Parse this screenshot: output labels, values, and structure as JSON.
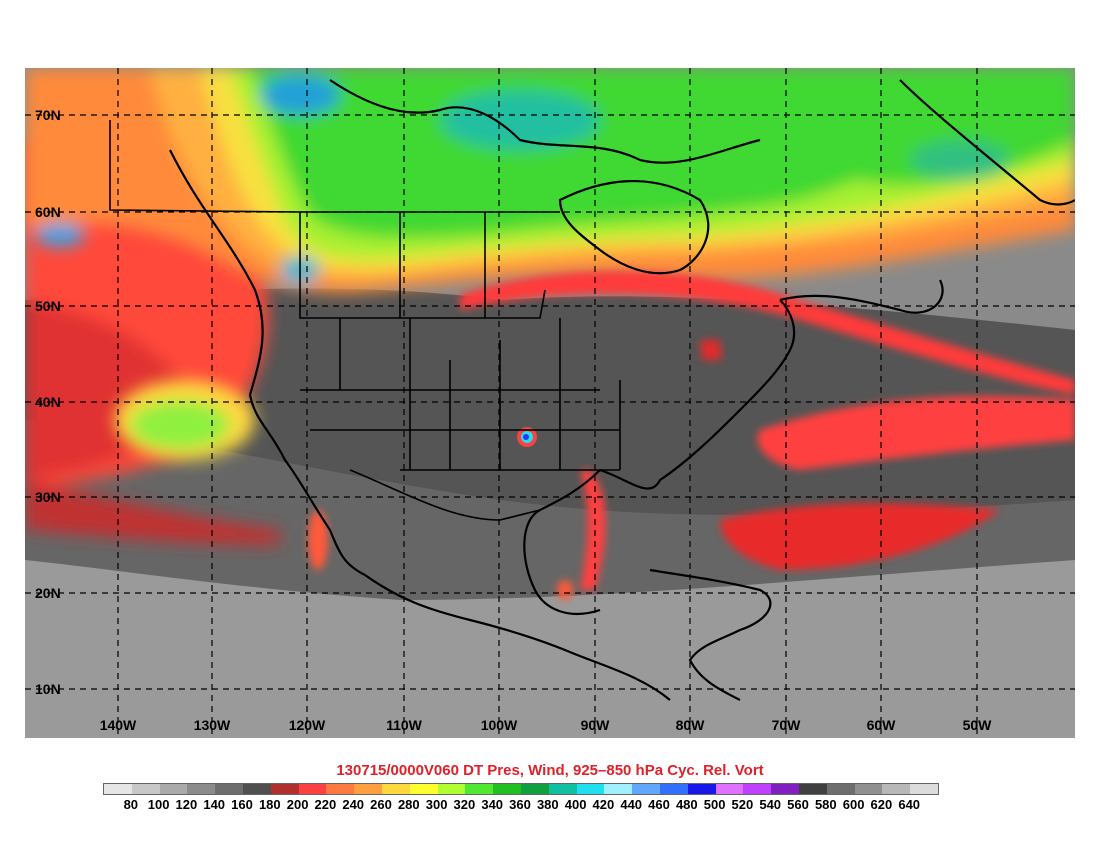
{
  "title": "130715/0000V060 DT Pres, Wind, 925–850 hPa Cyc. Rel. Vort",
  "map": {
    "lat_labels": [
      "70N",
      "60N",
      "50N",
      "40N",
      "30N",
      "20N",
      "10N"
    ],
    "lon_labels": [
      "140W",
      "130W",
      "120W",
      "110W",
      "100W",
      "90W",
      "80W",
      "70W",
      "60W",
      "50W"
    ]
  },
  "colorbar": {
    "labels": [
      "80",
      "100",
      "120",
      "140",
      "160",
      "180",
      "200",
      "220",
      "240",
      "260",
      "280",
      "300",
      "320",
      "340",
      "360",
      "380",
      "400",
      "420",
      "440",
      "460",
      "480",
      "500",
      "520",
      "540",
      "560",
      "580",
      "600",
      "620",
      "640"
    ],
    "colors": [
      "#e6e6e6",
      "#c8c8c8",
      "#aaaaaa",
      "#8c8c8c",
      "#6e6e6e",
      "#505050",
      "#b03030",
      "#ff4040",
      "#ff7a40",
      "#ffa040",
      "#ffd840",
      "#ffff30",
      "#b0ff30",
      "#50e830",
      "#20c020",
      "#10a040",
      "#10c0a0",
      "#20e0f0",
      "#a0f0ff",
      "#60a8ff",
      "#3070ff",
      "#1818e8",
      "#e070ff",
      "#c040ff",
      "#8020c0",
      "#404040",
      "#6e6e6e",
      "#909090",
      "#b8b8b8",
      "#dcdcdc"
    ]
  }
}
